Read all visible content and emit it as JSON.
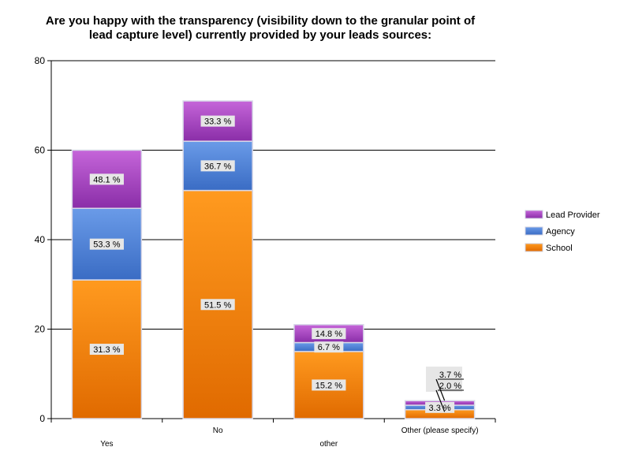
{
  "chart_data": {
    "type": "bar",
    "stacked": true,
    "title_lines": [
      "Are you happy with the transparency (visibility down to the granular point of",
      "lead capture level) currently provided by your leads sources:"
    ],
    "categories": [
      "Yes",
      "No",
      "other",
      "Other (please specify)"
    ],
    "ylim": [
      0,
      80
    ],
    "yticks": [
      0,
      20,
      40,
      60,
      80
    ],
    "series": [
      {
        "name": "School",
        "values": [
          31,
          51,
          15,
          2
        ],
        "labels": [
          "31.3 %",
          "51.5 %",
          "15.2 %",
          "2.0 %"
        ]
      },
      {
        "name": "Agency",
        "values": [
          16,
          11,
          2,
          1
        ],
        "labels": [
          "53.3 %",
          "36.7 %",
          "6.7 %",
          "3.3 %"
        ]
      },
      {
        "name": "Lead Provider",
        "values": [
          13,
          9,
          4,
          1
        ],
        "labels": [
          "48.1 %",
          "33.3 %",
          "14.8 %",
          "3.7 %"
        ]
      }
    ],
    "colors": {
      "School": [
        "#ff9a1f",
        "#e06a00"
      ],
      "Agency": [
        "#6a9be8",
        "#3a6cc4"
      ],
      "Lead Provider": [
        "#c565d9",
        "#8a2ea8"
      ]
    },
    "legend_order": [
      "Lead Provider",
      "Agency",
      "School"
    ],
    "legend_position": "right"
  }
}
